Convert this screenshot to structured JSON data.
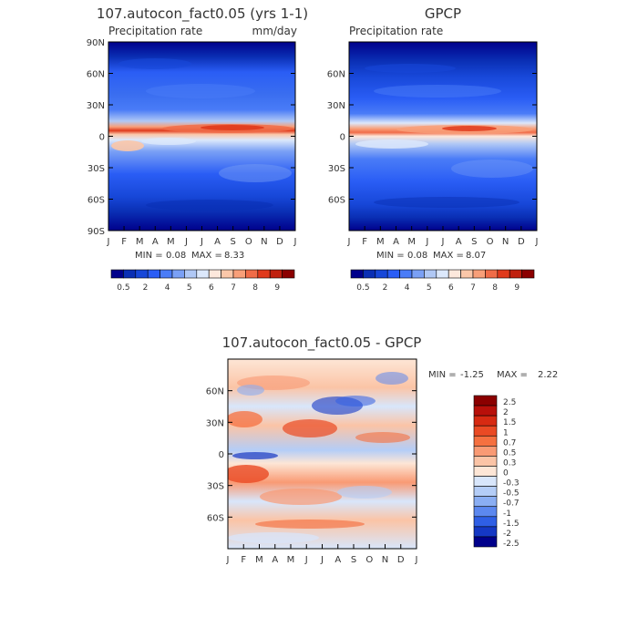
{
  "chart_data": [
    {
      "type": "heatmap",
      "title": "107.autocon_fact0.05 (yrs 1-1)",
      "subtitle_left": "Precipitation rate",
      "units": "mm/day",
      "x_ticks": [
        "J",
        "F",
        "M",
        "A",
        "M",
        "J",
        "J",
        "A",
        "S",
        "O",
        "N",
        "D",
        "J"
      ],
      "y_ticks": [
        "90N",
        "60N",
        "30N",
        "0",
        "30S",
        "60S",
        "90S"
      ],
      "stats": {
        "min_label": "MIN =",
        "min": "0.08",
        "max_label": "MAX =",
        "max": "8.33"
      },
      "colorbar_labels": [
        "0.5",
        "2",
        "4",
        "5",
        "6",
        "7",
        "8",
        "9"
      ],
      "colors": [
        "#00008b",
        "#0a2fb4",
        "#1747d8",
        "#2a5df5",
        "#4a7cf7",
        "#7aa0f5",
        "#b0c8f5",
        "#dce8fb",
        "#fde8dc",
        "#fbc7a9",
        "#f89f79",
        "#f06c48",
        "#e03a1c",
        "#c0200e",
        "#8b0000"
      ]
    },
    {
      "type": "heatmap",
      "title": "GPCP",
      "subtitle_left": "Precipitation rate",
      "x_ticks": [
        "J",
        "F",
        "M",
        "A",
        "M",
        "J",
        "J",
        "A",
        "S",
        "O",
        "N",
        "D",
        "J"
      ],
      "y_ticks": [
        "60N",
        "30N",
        "0",
        "30S",
        "60S"
      ],
      "stats": {
        "min_label": "MIN =",
        "min": "0.08",
        "max_label": "MAX =",
        "max": "8.07"
      },
      "colorbar_labels": [
        "0.5",
        "2",
        "4",
        "5",
        "6",
        "7",
        "8",
        "9"
      ]
    },
    {
      "type": "heatmap",
      "title": "107.autocon_fact0.05 - GPCP",
      "x_ticks": [
        "J",
        "F",
        "M",
        "A",
        "M",
        "J",
        "J",
        "A",
        "S",
        "O",
        "N",
        "D",
        "J"
      ],
      "y_ticks": [
        "60N",
        "30N",
        "0",
        "30S",
        "60S"
      ],
      "stats": {
        "min_label": "MIN =",
        "min": "-1.25",
        "max_label": "MAX =",
        "max": "2.22"
      },
      "colorbar_labels": [
        "2.5",
        "2",
        "1.5",
        "1",
        "0.7",
        "0.5",
        "0.3",
        "0",
        "-0.3",
        "-0.5",
        "-0.7",
        "-1",
        "-1.5",
        "-2",
        "-2.5"
      ],
      "diff_colors": [
        "#8b0000",
        "#b8100a",
        "#d72a12",
        "#ea4a24",
        "#f57040",
        "#f99a74",
        "#fbc4a6",
        "#fde6d6",
        "#d8e6fb",
        "#b4cdf7",
        "#8aaef3",
        "#5c88ef",
        "#2f5fe5",
        "#1538c4",
        "#00008b"
      ]
    }
  ]
}
